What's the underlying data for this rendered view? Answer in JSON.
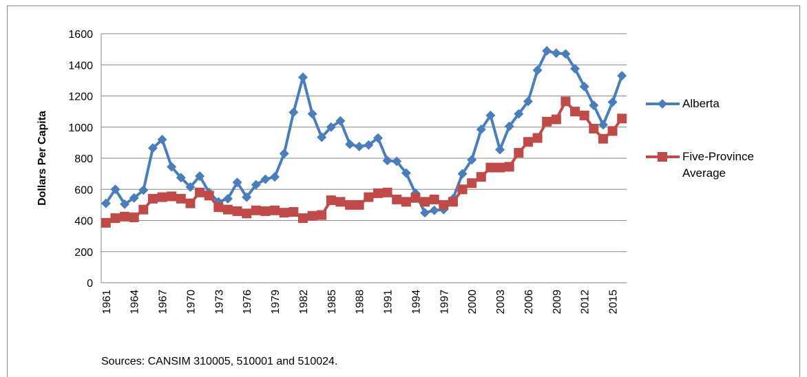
{
  "chart_data": {
    "type": "line",
    "y_label": "Dollars Per Capita",
    "note": "Sources: CANSIM 310005, 510001 and 510024.",
    "categories": [
      "1961",
      null,
      null,
      "1964",
      null,
      null,
      "1967",
      null,
      null,
      "1970",
      null,
      null,
      "1973",
      null,
      null,
      "1976",
      null,
      null,
      "1979",
      null,
      null,
      "1982",
      null,
      null,
      "1985",
      null,
      null,
      "1988",
      null,
      null,
      "1991",
      null,
      null,
      "1994",
      null,
      null,
      "1997",
      null,
      null,
      "2000",
      null,
      null,
      "2003",
      null,
      null,
      "2006",
      null,
      null,
      "2009",
      null,
      null,
      "2012",
      null,
      null,
      "2015",
      null
    ],
    "series": [
      {
        "name": "Alberta",
        "color": "#4a7ebb",
        "marker": "diamond",
        "values": [
          510,
          600,
          505,
          545,
          595,
          865,
          920,
          745,
          675,
          615,
          685,
          580,
          520,
          540,
          645,
          550,
          630,
          665,
          680,
          830,
          1095,
          1320,
          1085,
          935,
          1000,
          1040,
          890,
          875,
          885,
          930,
          785,
          780,
          705,
          575,
          450,
          465,
          470,
          540,
          700,
          790,
          985,
          1075,
          855,
          1005,
          1085,
          1165,
          1365,
          1490,
          1475,
          1470,
          1375,
          1260,
          1140,
          1015,
          1160,
          1330
        ]
      },
      {
        "name": "Five-Province Average",
        "color": "#be4b48",
        "marker": "square",
        "values": [
          385,
          415,
          425,
          420,
          470,
          540,
          550,
          555,
          540,
          510,
          580,
          560,
          485,
          470,
          460,
          445,
          465,
          460,
          465,
          450,
          455,
          415,
          430,
          435,
          530,
          520,
          500,
          500,
          550,
          575,
          580,
          535,
          520,
          545,
          520,
          535,
          500,
          520,
          600,
          640,
          680,
          740,
          740,
          745,
          835,
          905,
          930,
          1035,
          1050,
          1165,
          1100,
          1075,
          990,
          925,
          975,
          1055
        ]
      }
    ],
    "ylim": [
      0,
      1600
    ],
    "yticks": [
      0,
      200,
      400,
      600,
      800,
      1000,
      1200,
      1400,
      1600
    ],
    "grid": true,
    "legend": "right"
  }
}
